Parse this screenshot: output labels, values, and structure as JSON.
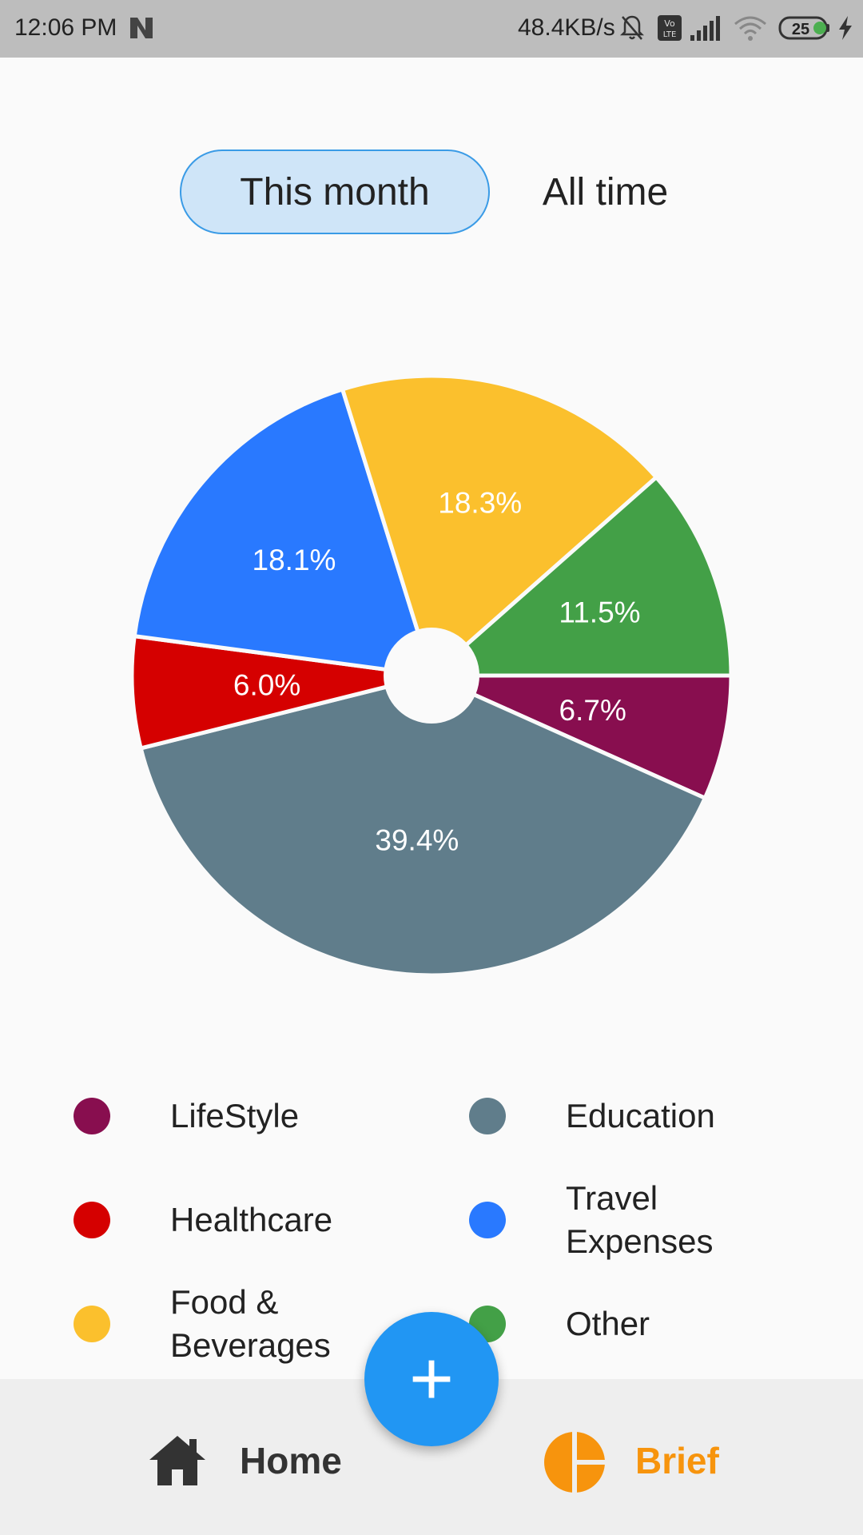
{
  "status_bar": {
    "time": "12:06 PM",
    "network_speed": "48.4KB/s",
    "battery": "25",
    "icons": [
      "n-icon",
      "mute-bell-icon",
      "volte-icon",
      "cell-signal-icon",
      "wifi-icon",
      "battery-icon",
      "charging-icon"
    ]
  },
  "range_toggle": {
    "this_month": "This month",
    "all_time": "All time",
    "selected": "This month"
  },
  "chart_data": {
    "type": "pie",
    "categories": [
      "LifeStyle",
      "Education",
      "Healthcare",
      "Travel Expenses",
      "Food & Beverages",
      "Other"
    ],
    "values": [
      6.7,
      39.4,
      6.0,
      18.1,
      18.3,
      11.5
    ],
    "labels": [
      "6.7%",
      "39.4%",
      "6.0%",
      "18.1%",
      "18.3%",
      "11.5%"
    ],
    "colors": [
      "#880e4f",
      "#607d8b",
      "#d50000",
      "#2979ff",
      "#fbc02d",
      "#43a047"
    ],
    "donut_hole": true
  },
  "legend": {
    "items": [
      {
        "label": "LifeStyle",
        "color": "#880e4f"
      },
      {
        "label": "Education",
        "color": "#607d8b"
      },
      {
        "label": "Healthcare",
        "color": "#d50000"
      },
      {
        "label": "Travel Expenses",
        "color": "#2979ff"
      },
      {
        "label": "Food & Beverages",
        "color": "#fbc02d"
      },
      {
        "label": "Other",
        "color": "#43a047"
      }
    ]
  },
  "fab": {
    "label": "+",
    "icon": "add-icon"
  },
  "bottom_nav": {
    "home": {
      "label": "Home",
      "icon": "home-icon"
    },
    "brief": {
      "label": "Brief",
      "icon": "pie-chart-icon",
      "active": true
    }
  }
}
